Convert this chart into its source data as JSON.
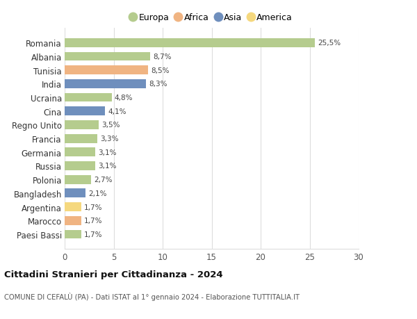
{
  "countries": [
    "Romania",
    "Albania",
    "Tunisia",
    "India",
    "Ucraina",
    "Cina",
    "Regno Unito",
    "Francia",
    "Germania",
    "Russia",
    "Polonia",
    "Bangladesh",
    "Argentina",
    "Marocco",
    "Paesi Bassi"
  ],
  "values": [
    25.5,
    8.7,
    8.5,
    8.3,
    4.8,
    4.1,
    3.5,
    3.3,
    3.1,
    3.1,
    2.7,
    2.1,
    1.7,
    1.7,
    1.7
  ],
  "labels": [
    "25,5%",
    "8,7%",
    "8,5%",
    "8,3%",
    "4,8%",
    "4,1%",
    "3,5%",
    "3,3%",
    "3,1%",
    "3,1%",
    "2,7%",
    "2,1%",
    "1,7%",
    "1,7%",
    "1,7%"
  ],
  "continents": [
    "Europa",
    "Europa",
    "Africa",
    "Asia",
    "Europa",
    "Asia",
    "Europa",
    "Europa",
    "Europa",
    "Europa",
    "Europa",
    "Asia",
    "America",
    "Africa",
    "Europa"
  ],
  "continent_colors": {
    "Europa": "#b5cc8e",
    "Africa": "#f0b482",
    "Asia": "#6f8fbd",
    "America": "#f5d87e"
  },
  "legend_order": [
    "Europa",
    "Africa",
    "Asia",
    "America"
  ],
  "title": "Cittadini Stranieri per Cittadinanza - 2024",
  "subtitle": "COMUNE DI CEFALÙ (PA) - Dati ISTAT al 1° gennaio 2024 - Elaborazione TUTTITALIA.IT",
  "xlim": [
    0,
    30
  ],
  "xticks": [
    0,
    5,
    10,
    15,
    20,
    25,
    30
  ],
  "background_color": "#ffffff",
  "bar_height": 0.65,
  "grid_color": "#dddddd"
}
